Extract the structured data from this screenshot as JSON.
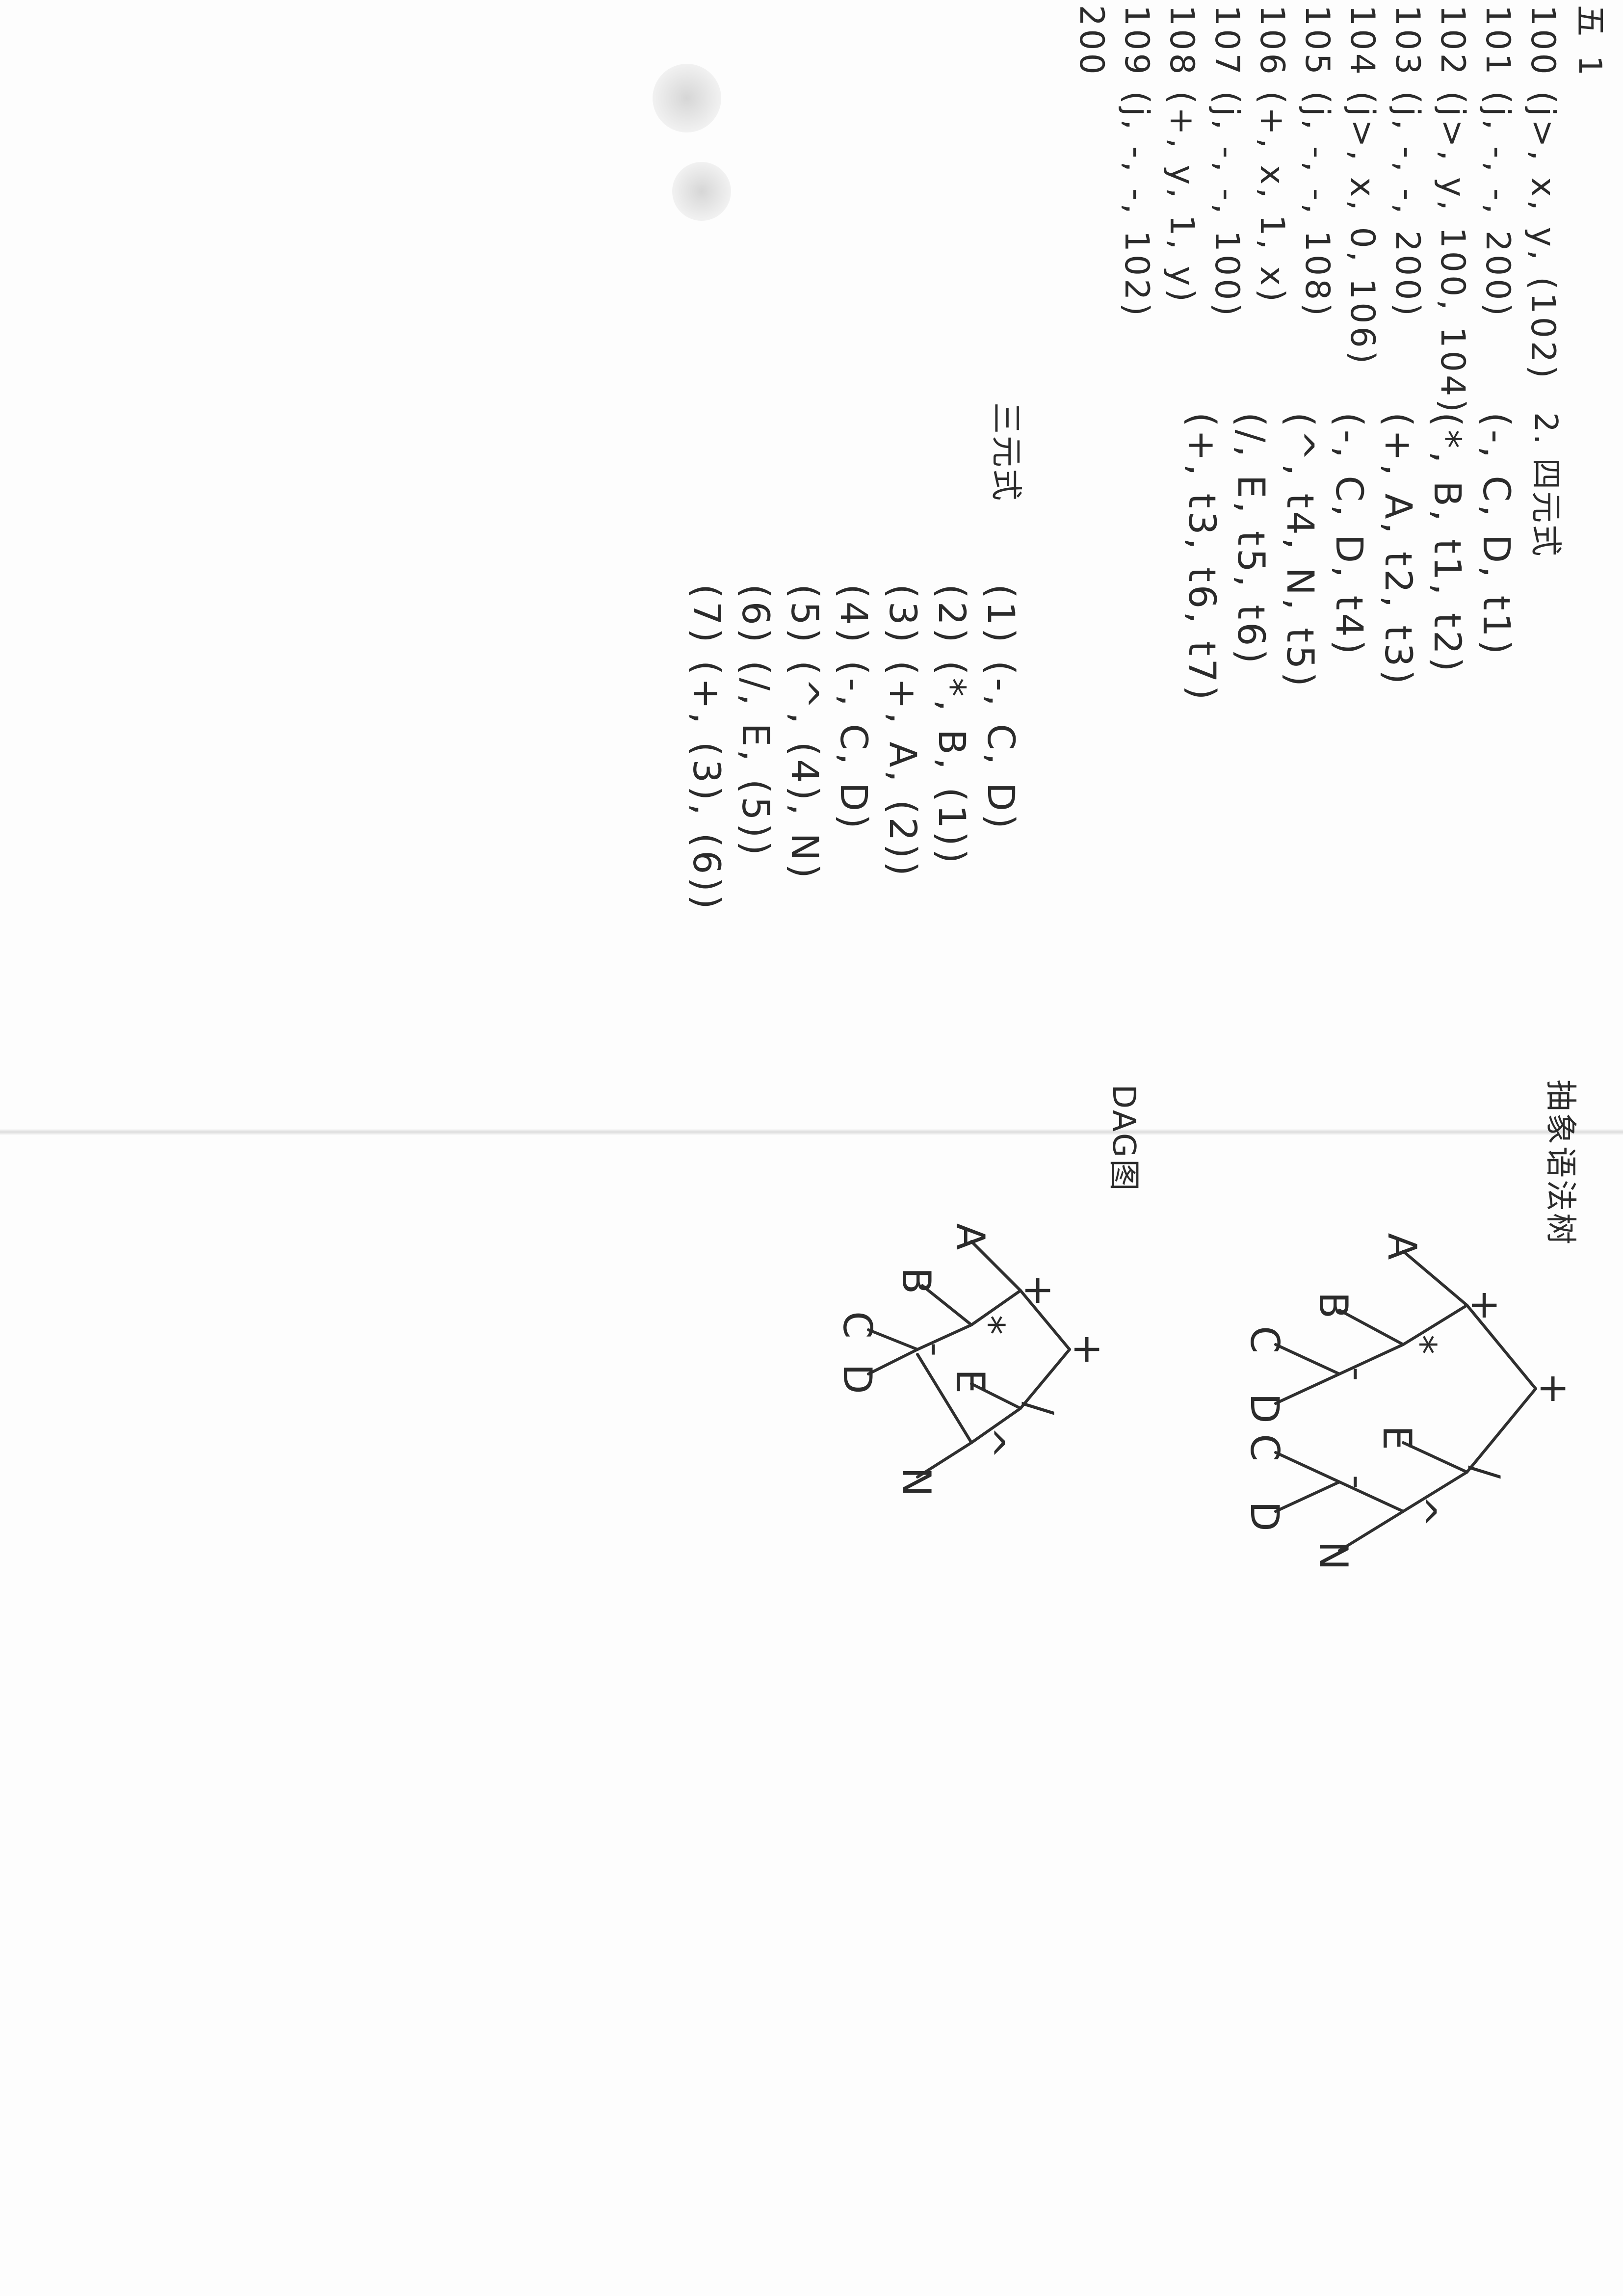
{
  "section_one": {
    "heading": "五",
    "number": "1",
    "quadruples": [
      "100 (j>, x, y, (102)",
      "101 (j, -, -, 200)",
      "102 (j>, y, 100, 104)",
      "103 (j, -, -, 200)",
      "104 (j>, x, 0, 106)",
      "105 (j, -, -, 108)",
      "106 (+, x, 1, x)",
      "107 (j, -, -, 100)",
      "108 (+, y, 1, y)",
      "109 (j, -, -, 102)",
      "200"
    ]
  },
  "section_two": {
    "number": "2.",
    "label": "四元式",
    "quadruples": [
      "(-, C, D, t1)",
      "(*, B, t1, t2)",
      "(+, A, t2, t3)",
      "(-, C, D, t4)",
      "(^, t4, N, t5)",
      "(/, E, t5, t6)",
      "(+, t3, t6, t7)"
    ]
  },
  "section_three": {
    "label": "三元式",
    "triples": [
      "(1) (-, C, D)",
      "(2) (*, B, (1))",
      "(3) (+, A, (2))",
      "(4) (-, C, D)",
      "(5) (^, (4), N)",
      "(6) (/, E, (5))",
      "(7) (+, (3), (6))"
    ]
  },
  "syntax_tree": {
    "label": "抽象语法树",
    "nodes": [
      "+",
      "+",
      "A",
      "*",
      "B",
      "-",
      "C",
      "D",
      "/",
      "E",
      "^",
      "-",
      "C",
      "D",
      "N"
    ]
  },
  "dag": {
    "label": "DAG图",
    "nodes": [
      "+",
      "+",
      "A",
      "*",
      "B",
      "-",
      "C",
      "D",
      "/",
      "E",
      "^",
      "N"
    ]
  }
}
